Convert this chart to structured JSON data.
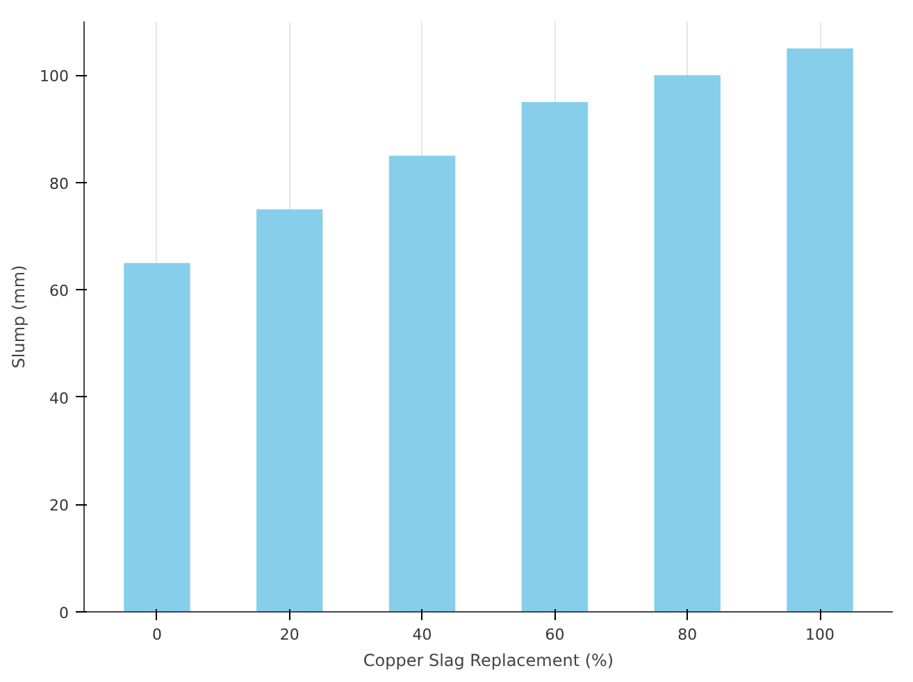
{
  "chart_data": {
    "type": "bar",
    "xlabel": "Copper Slag Replacement (%)",
    "ylabel": "Slump (mm)",
    "categories": [
      "0",
      "20",
      "40",
      "60",
      "80",
      "100"
    ],
    "values": [
      65,
      75,
      85,
      95,
      100,
      105
    ],
    "color": "#87ceeb",
    "ylim": [
      0,
      110
    ],
    "yticks": [
      0,
      20,
      40,
      60,
      80,
      100
    ],
    "grid": "x"
  }
}
